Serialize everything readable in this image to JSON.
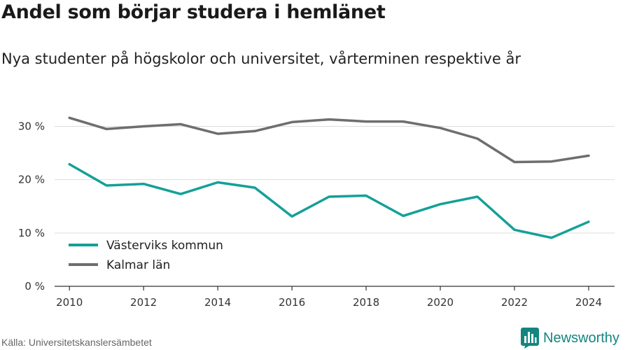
{
  "header": {
    "title": "Andel som börjar studera i hemlänet",
    "subtitle": "Nya studenter på högskolor och universitet, vårterminen respektive år"
  },
  "footer": {
    "source": "Källa: Universitetskanslersämbetet",
    "brand": "Newsworthy",
    "brand_icon": "bar-chart-logo-icon",
    "brand_color": "#13857e"
  },
  "chart_data": {
    "type": "line",
    "title": "Andel som börjar studera i hemlänet",
    "subtitle": "Nya studenter på högskolor och universitet, vårterminen respektive år",
    "xlabel": "",
    "ylabel": "",
    "x": [
      2010,
      2011,
      2012,
      2013,
      2014,
      2015,
      2016,
      2017,
      2018,
      2019,
      2020,
      2021,
      2022,
      2023,
      2024
    ],
    "x_ticks": [
      "2010",
      "2012",
      "2014",
      "2016",
      "2018",
      "2020",
      "2022",
      "2024"
    ],
    "y_ticks": [
      "0 %",
      "10 %",
      "20 %",
      "30 %"
    ],
    "xlim": [
      2009.6,
      2024.7
    ],
    "ylim": [
      0,
      34
    ],
    "grid": true,
    "legend_position": "bottom-left",
    "series": [
      {
        "name": "Västerviks kommun",
        "color": "#14a098",
        "values": [
          22.9,
          18.9,
          19.2,
          17.3,
          19.5,
          18.5,
          13.1,
          16.8,
          17.0,
          13.2,
          15.4,
          16.8,
          10.6,
          9.1,
          12.1
        ]
      },
      {
        "name": "Kalmar län",
        "color": "#6e6e6e",
        "values": [
          31.6,
          29.5,
          30.0,
          30.4,
          28.6,
          29.1,
          30.8,
          31.3,
          30.9,
          30.9,
          29.7,
          27.7,
          23.3,
          23.4,
          24.5
        ]
      }
    ]
  }
}
